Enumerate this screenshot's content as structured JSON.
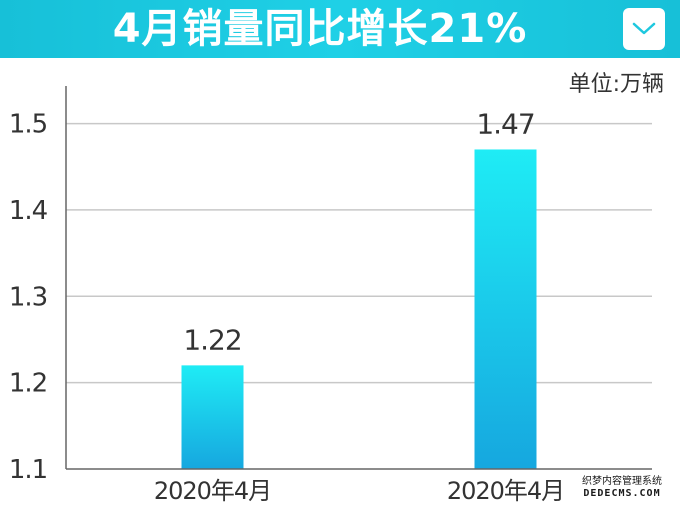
{
  "header": {
    "title": "4月销量同比增长21%"
  },
  "unit_label": "单位:万辆",
  "colors": {
    "header_bg": "#1fd0e6",
    "bar_top": "#1fecf5",
    "bar_bottom": "#16a7df",
    "grid": "#c8c8c8",
    "axis": "#666666",
    "text": "#333333"
  },
  "icons": {
    "dropdown": "chevron-down-icon"
  },
  "watermark": {
    "line1": "织梦内容管理系统",
    "line2": "DEDECMS.COM"
  },
  "chart_data": {
    "type": "bar",
    "categories": [
      "2020年4月",
      "2020年4月"
    ],
    "values": [
      1.22,
      1.47
    ],
    "data_labels": [
      "1.22",
      "1.47"
    ],
    "title": "4月销量同比增长21%",
    "xlabel": "",
    "ylabel": "",
    "ylim": [
      1.1,
      1.5
    ],
    "yticks": [
      1.1,
      1.2,
      1.3,
      1.4,
      1.5
    ],
    "ytick_labels": [
      "1.1",
      "1.2",
      "1.3",
      "1.4",
      "1.5"
    ],
    "grid": true,
    "legend": "none"
  }
}
